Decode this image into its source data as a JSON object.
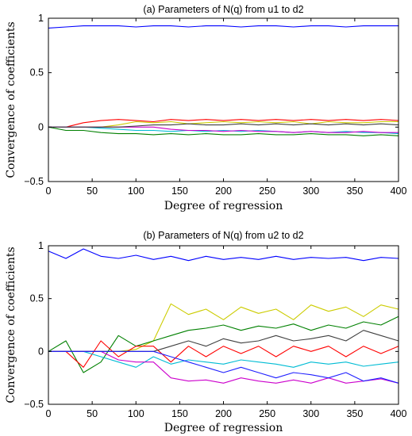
{
  "chart_data": [
    {
      "type": "line",
      "title": "(a) Parameters of N(q) from u1 to d2",
      "xlabel": "Degree of regression",
      "ylabel": "Convergence of coefficients",
      "xlim": [
        0,
        400
      ],
      "ylim": [
        -0.5,
        1
      ],
      "xticks": [
        "0",
        "50",
        "100",
        "150",
        "200",
        "250",
        "300",
        "350",
        "400"
      ],
      "yticks": [
        "1",
        "0.5",
        "0",
        "−0.5"
      ],
      "grid": false,
      "legend": "none",
      "x": [
        0,
        20,
        40,
        60,
        80,
        100,
        120,
        140,
        160,
        180,
        200,
        220,
        240,
        260,
        280,
        300,
        320,
        340,
        360,
        380,
        400
      ],
      "series": [
        {
          "color": "#0000ff",
          "values": [
            0.91,
            0.92,
            0.93,
            0.93,
            0.93,
            0.92,
            0.93,
            0.93,
            0.92,
            0.93,
            0.93,
            0.92,
            0.93,
            0.93,
            0.92,
            0.93,
            0.93,
            0.92,
            0.93,
            0.93,
            0.93
          ]
        },
        {
          "color": "#ff0000",
          "values": [
            0,
            0,
            0.04,
            0.06,
            0.07,
            0.06,
            0.05,
            0.07,
            0.06,
            0.07,
            0.06,
            0.07,
            0.06,
            0.07,
            0.06,
            0.07,
            0.06,
            0.07,
            0.06,
            0.07,
            0.06
          ]
        },
        {
          "color": "#cccc00",
          "values": [
            0,
            0,
            0,
            0,
            0.02,
            0.05,
            0.04,
            0.05,
            0.03,
            0.04,
            0.05,
            0.04,
            0.05,
            0.04,
            0.05,
            0.03,
            0.05,
            0.04,
            0.04,
            0.05,
            0.05
          ]
        },
        {
          "color": "#008000",
          "values": [
            0,
            -0.03,
            -0.03,
            -0.05,
            -0.06,
            -0.06,
            -0.07,
            -0.06,
            -0.07,
            -0.06,
            -0.07,
            -0.07,
            -0.06,
            -0.07,
            -0.07,
            -0.06,
            -0.07,
            -0.07,
            -0.08,
            -0.07,
            -0.08
          ]
        },
        {
          "color": "#00bcd4",
          "values": [
            0,
            0,
            0,
            -0.01,
            -0.02,
            -0.03,
            -0.03,
            -0.04,
            -0.03,
            -0.04,
            -0.03,
            -0.04,
            -0.03,
            -0.04,
            -0.05,
            -0.04,
            -0.05,
            -0.04,
            -0.05,
            -0.05,
            -0.06
          ]
        },
        {
          "color": "#cc00cc",
          "values": [
            0,
            0,
            0,
            0,
            0,
            0,
            0,
            -0.02,
            -0.03,
            -0.03,
            -0.04,
            -0.03,
            -0.04,
            -0.04,
            -0.05,
            -0.04,
            -0.05,
            -0.05,
            -0.04,
            -0.05,
            -0.05
          ]
        },
        {
          "color": "#404040",
          "values": [
            0,
            0,
            0,
            0,
            0,
            0.01,
            0.02,
            0.02,
            0.03,
            0.02,
            0.02,
            0.03,
            0.02,
            0.03,
            0.02,
            0.03,
            0.02,
            0.03,
            0.02,
            0.03,
            0.02
          ]
        }
      ]
    },
    {
      "type": "line",
      "title": "(b) Parameters of N(q) from u2 to d2",
      "xlabel": "Degree of regression",
      "ylabel": "Convergence of coefficients",
      "xlim": [
        0,
        400
      ],
      "ylim": [
        -0.5,
        1
      ],
      "xticks": [
        "0",
        "50",
        "100",
        "150",
        "200",
        "250",
        "300",
        "350",
        "400"
      ],
      "yticks": [
        "1",
        "0.5",
        "0",
        "−0.5"
      ],
      "grid": false,
      "legend": "none",
      "x": [
        0,
        20,
        40,
        60,
        80,
        100,
        120,
        140,
        160,
        180,
        200,
        220,
        240,
        260,
        280,
        300,
        320,
        340,
        360,
        380,
        400
      ],
      "series": [
        {
          "color": "#0000ff",
          "values": [
            0.95,
            0.88,
            0.97,
            0.9,
            0.88,
            0.91,
            0.87,
            0.9,
            0.86,
            0.9,
            0.87,
            0.89,
            0.87,
            0.9,
            0.87,
            0.89,
            0.88,
            0.89,
            0.86,
            0.89,
            0.88
          ]
        },
        {
          "color": "#cccc00",
          "values": [
            0,
            0,
            0,
            0,
            0,
            0.02,
            0.1,
            0.45,
            0.35,
            0.4,
            0.3,
            0.42,
            0.36,
            0.4,
            0.3,
            0.44,
            0.38,
            0.42,
            0.33,
            0.44,
            0.4
          ]
        },
        {
          "color": "#008000",
          "values": [
            0,
            0.1,
            -0.2,
            -0.1,
            0.15,
            0.05,
            0.1,
            0.15,
            0.2,
            0.22,
            0.25,
            0.2,
            0.24,
            0.22,
            0.26,
            0.2,
            0.25,
            0.22,
            0.28,
            0.25,
            0.33
          ]
        },
        {
          "color": "#ff0000",
          "values": [
            0,
            0,
            -0.15,
            0.1,
            -0.05,
            0.05,
            0.05,
            -0.1,
            0.05,
            -0.05,
            0.05,
            -0.02,
            0.05,
            -0.05,
            0.05,
            0.0,
            0.05,
            -0.05,
            0.05,
            -0.02,
            0.05
          ]
        },
        {
          "color": "#00bcd4",
          "values": [
            0,
            0,
            0,
            -0.05,
            -0.1,
            -0.15,
            -0.05,
            -0.12,
            -0.08,
            -0.1,
            -0.12,
            -0.08,
            -0.1,
            -0.12,
            -0.15,
            -0.1,
            -0.12,
            -0.1,
            -0.14,
            -0.12,
            -0.1
          ]
        },
        {
          "color": "#cc00cc",
          "values": [
            0,
            0,
            0,
            0,
            -0.08,
            -0.1,
            -0.1,
            -0.25,
            -0.28,
            -0.27,
            -0.3,
            -0.25,
            -0.28,
            -0.3,
            -0.27,
            -0.3,
            -0.25,
            -0.3,
            -0.28,
            -0.26,
            -0.3
          ]
        },
        {
          "color": "#404040",
          "values": [
            0,
            0,
            0,
            0,
            0,
            0,
            0,
            0.05,
            0.1,
            0.05,
            0.12,
            0.08,
            0.1,
            0.15,
            0.1,
            0.12,
            0.15,
            0.1,
            0.2,
            0.15,
            0.1
          ]
        },
        {
          "color": "#1f1fff",
          "values": [
            0,
            0,
            0,
            0,
            0,
            0,
            0,
            -0.05,
            -0.1,
            -0.15,
            -0.2,
            -0.15,
            -0.2,
            -0.25,
            -0.2,
            -0.22,
            -0.25,
            -0.2,
            -0.28,
            -0.25,
            -0.3
          ]
        }
      ]
    }
  ]
}
